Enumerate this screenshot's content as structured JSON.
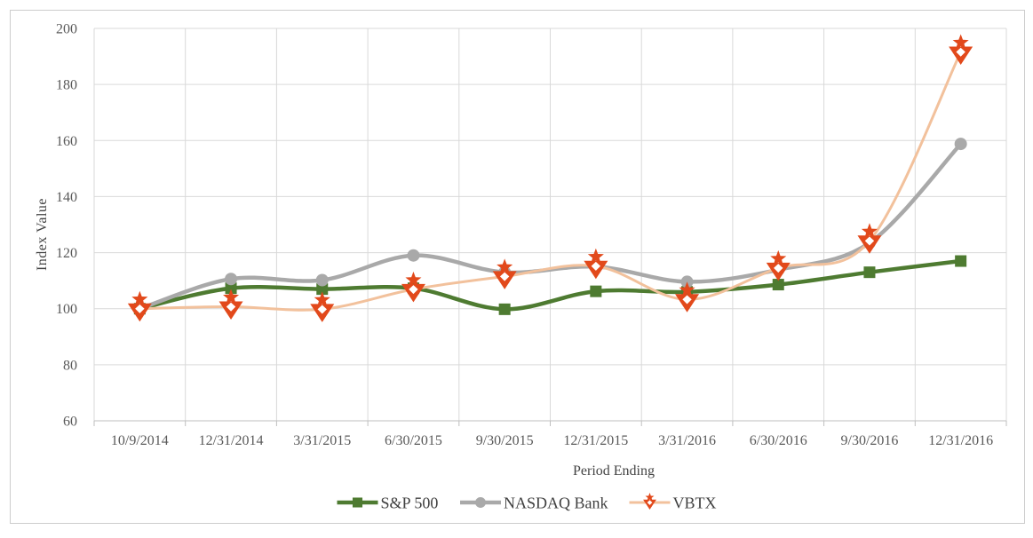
{
  "chart_data": {
    "type": "line",
    "title": "",
    "xlabel": "Period Ending",
    "ylabel": "Index Value",
    "ylim": [
      60,
      200
    ],
    "ytick_step": 20,
    "grid": true,
    "smoothed": true,
    "legend_position": "bottom-center",
    "categories": [
      "10/9/2014",
      "12/31/2014",
      "3/31/2015",
      "6/30/2015",
      "9/30/2015",
      "12/31/2015",
      "3/31/2016",
      "6/30/2016",
      "9/30/2016",
      "12/31/2016"
    ],
    "series": [
      {
        "name": "S&P 500",
        "slug": "sp-500",
        "marker": "square",
        "line_color": "#4E7B31",
        "marker_color": "#4E7B31",
        "line_width": 4.5,
        "values": [
          100,
          107.3,
          107.0,
          107.3,
          99.8,
          106.2,
          106.0,
          108.6,
          113.0,
          117.0
        ]
      },
      {
        "name": "NASDAQ Bank",
        "slug": "nasdaq-bank",
        "marker": "circle",
        "line_color": "#A9A9A9",
        "marker_color": "#A9A9A9",
        "line_width": 4.5,
        "values": [
          100,
          110.6,
          110.2,
          119.0,
          113.0,
          115.0,
          109.6,
          113.9,
          123.5,
          158.8
        ]
      },
      {
        "name": "VBTX",
        "slug": "vbtx",
        "marker": "star-arrow",
        "line_color": "#F2C19C",
        "marker_color": "#E2491B",
        "line_width": 3,
        "values": [
          100,
          100.7,
          99.8,
          106.9,
          111.5,
          115.2,
          103.3,
          114.5,
          124.2,
          191.6
        ]
      }
    ],
    "style": {
      "grid_color": "#D9D9D9",
      "axis_color": "#BFBFBF",
      "tick_label_color": "#595959",
      "axis_title_color": "#444444",
      "legend_text_color": "#404040",
      "background": "#FFFFFF",
      "frame_border_color": "#CDCDCD"
    }
  }
}
